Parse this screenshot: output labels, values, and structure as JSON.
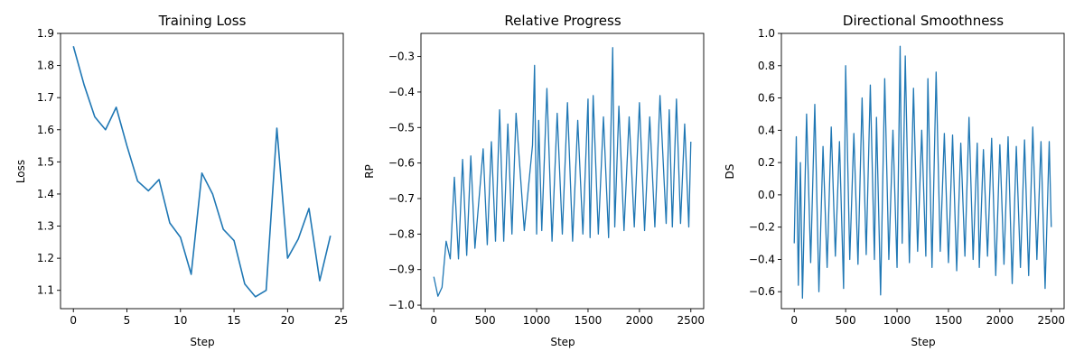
{
  "chart_data": [
    {
      "type": "line",
      "title": "Training Loss",
      "xlabel": "Step",
      "ylabel": "Loss",
      "xlim": [
        -1.2,
        25.2
      ],
      "ylim": [
        1.043,
        1.9
      ],
      "xticks": [
        0,
        5,
        10,
        15,
        20,
        25
      ],
      "yticks": [
        1.1,
        1.2,
        1.3,
        1.4,
        1.5,
        1.6,
        1.7,
        1.8,
        1.9
      ],
      "xtick_labels": [
        "0",
        "5",
        "10",
        "15",
        "20",
        "25"
      ],
      "ytick_labels": [
        "1.1",
        "1.2",
        "1.3",
        "1.4",
        "1.5",
        "1.6",
        "1.7",
        "1.8",
        "1.9"
      ],
      "color": "#1f77b4",
      "grid": false,
      "series": [
        {
          "x": [
            0,
            1,
            2,
            3,
            4,
            5,
            6,
            7,
            8,
            9,
            10,
            11,
            12,
            13,
            14,
            15,
            16,
            17,
            18,
            19,
            20,
            21,
            22,
            23,
            24
          ],
          "y": [
            1.86,
            1.74,
            1.64,
            1.6,
            1.67,
            1.55,
            1.44,
            1.41,
            1.445,
            1.31,
            1.265,
            1.15,
            1.465,
            1.4,
            1.29,
            1.255,
            1.12,
            1.08,
            1.1,
            1.605,
            1.2,
            1.26,
            1.355,
            1.13,
            1.27
          ]
        }
      ]
    },
    {
      "type": "line",
      "title": "Relative Progress",
      "xlabel": "Step",
      "ylabel": "RP",
      "xlim": [
        -125,
        2625
      ],
      "ylim": [
        -1.01,
        -0.235
      ],
      "xticks": [
        0,
        500,
        1000,
        1500,
        2000,
        2500
      ],
      "yticks": [
        -1.0,
        -0.9,
        -0.8,
        -0.7,
        -0.6,
        -0.5,
        -0.4,
        -0.3
      ],
      "xtick_labels": [
        "0",
        "500",
        "1000",
        "1500",
        "2000",
        "2500"
      ],
      "ytick_labels": [
        "−1.0",
        "−0.9",
        "−0.8",
        "−0.7",
        "−0.6",
        "−0.5",
        "−0.4",
        "−0.3"
      ],
      "color": "#1f77b4",
      "grid": false,
      "series": [
        {
          "x": [
            0,
            40,
            80,
            120,
            160,
            200,
            240,
            280,
            320,
            360,
            400,
            480,
            520,
            560,
            600,
            640,
            680,
            720,
            760,
            800,
            880,
            960,
            980,
            1000,
            1020,
            1050,
            1100,
            1150,
            1200,
            1250,
            1300,
            1350,
            1400,
            1450,
            1500,
            1520,
            1550,
            1600,
            1650,
            1700,
            1740,
            1760,
            1800,
            1850,
            1900,
            1950,
            2000,
            2050,
            2100,
            2150,
            2200,
            2260,
            2290,
            2320,
            2360,
            2400,
            2440,
            2480,
            2500
          ],
          "y": [
            -0.92,
            -0.975,
            -0.95,
            -0.82,
            -0.87,
            -0.64,
            -0.87,
            -0.59,
            -0.86,
            -0.58,
            -0.84,
            -0.56,
            -0.83,
            -0.54,
            -0.82,
            -0.45,
            -0.82,
            -0.49,
            -0.8,
            -0.46,
            -0.79,
            -0.55,
            -0.325,
            -0.8,
            -0.48,
            -0.79,
            -0.39,
            -0.82,
            -0.46,
            -0.8,
            -0.43,
            -0.82,
            -0.48,
            -0.8,
            -0.42,
            -0.81,
            -0.41,
            -0.8,
            -0.47,
            -0.81,
            -0.275,
            -0.78,
            -0.44,
            -0.79,
            -0.47,
            -0.78,
            -0.43,
            -0.79,
            -0.47,
            -0.78,
            -0.41,
            -0.77,
            -0.45,
            -0.78,
            -0.42,
            -0.77,
            -0.49,
            -0.78,
            -0.54
          ]
        }
      ]
    },
    {
      "type": "line",
      "title": "Directional Smoothness",
      "xlabel": "Step",
      "ylabel": "DS",
      "xlim": [
        -125,
        2625
      ],
      "ylim": [
        -0.705,
        1.0
      ],
      "xticks": [
        0,
        500,
        1000,
        1500,
        2000,
        2500
      ],
      "yticks": [
        -0.6,
        -0.4,
        -0.2,
        0.0,
        0.2,
        0.4,
        0.6,
        0.8,
        1.0
      ],
      "xtick_labels": [
        "0",
        "500",
        "1000",
        "1500",
        "2000",
        "2500"
      ],
      "ytick_labels": [
        "−0.6",
        "−0.4",
        "−0.2",
        "0.0",
        "0.2",
        "0.4",
        "0.6",
        "0.8",
        "1.0"
      ],
      "color": "#1f77b4",
      "grid": false,
      "series": [
        {
          "x": [
            0,
            20,
            40,
            60,
            80,
            120,
            160,
            200,
            240,
            280,
            320,
            360,
            400,
            440,
            480,
            500,
            540,
            580,
            620,
            660,
            700,
            740,
            780,
            800,
            840,
            880,
            920,
            960,
            1000,
            1030,
            1050,
            1080,
            1120,
            1160,
            1200,
            1240,
            1280,
            1300,
            1340,
            1380,
            1420,
            1460,
            1500,
            1540,
            1580,
            1620,
            1660,
            1700,
            1740,
            1780,
            1800,
            1840,
            1880,
            1920,
            1960,
            2000,
            2040,
            2080,
            2120,
            2160,
            2200,
            2240,
            2280,
            2320,
            2360,
            2400,
            2440,
            2480,
            2500
          ],
          "y": [
            -0.3,
            0.36,
            -0.56,
            0.2,
            -0.64,
            0.5,
            -0.42,
            0.56,
            -0.6,
            0.3,
            -0.45,
            0.42,
            -0.38,
            0.33,
            -0.58,
            0.8,
            -0.4,
            0.38,
            -0.43,
            0.6,
            -0.37,
            0.68,
            -0.4,
            0.48,
            -0.62,
            0.72,
            -0.4,
            0.4,
            -0.45,
            0.92,
            -0.3,
            0.86,
            -0.42,
            0.66,
            -0.35,
            0.4,
            -0.38,
            0.72,
            -0.45,
            0.76,
            -0.35,
            0.38,
            -0.42,
            0.37,
            -0.47,
            0.32,
            -0.38,
            0.48,
            -0.4,
            0.32,
            -0.45,
            0.28,
            -0.38,
            0.35,
            -0.5,
            0.31,
            -0.43,
            0.36,
            -0.55,
            0.3,
            -0.45,
            0.34,
            -0.5,
            0.42,
            -0.4,
            0.33,
            -0.58,
            0.33,
            -0.2
          ]
        }
      ]
    }
  ]
}
